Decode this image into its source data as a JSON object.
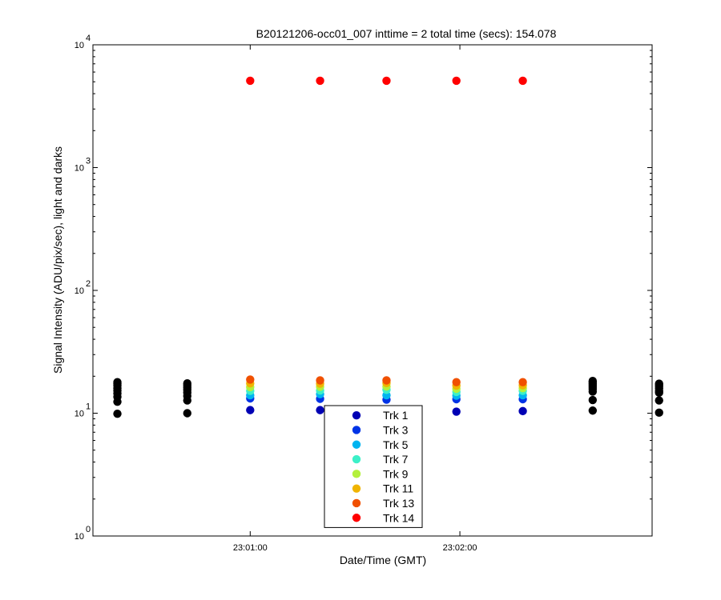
{
  "chart_data": {
    "type": "scatter",
    "title": "B20121206-occ01_007 inttime = 2 total time (secs): 154.078",
    "xlabel": "Date/Time (GMT)",
    "ylabel": "Signal Intensity (ADU/pix/sec), light and darks",
    "yscale": "log",
    "ylim": [
      1,
      10000
    ],
    "xlim": [
      "23:00:15",
      "23:02:55"
    ],
    "x_ticks": [
      "23:01:00",
      "23:02:00"
    ],
    "y_ticks": [
      {
        "value": 1,
        "base": "10",
        "exp": "0"
      },
      {
        "value": 10,
        "base": "10",
        "exp": "1"
      },
      {
        "value": 100,
        "base": "10",
        "exp": "2"
      },
      {
        "value": 1000,
        "base": "10",
        "exp": "3"
      },
      {
        "value": 10000,
        "base": "10",
        "exp": "4"
      }
    ],
    "grid": false,
    "legend_position": "bottom-center",
    "series": [
      {
        "name": "Trk 1",
        "color": "#0000b4",
        "points": [
          [
            "23:01:00",
            10.6
          ],
          [
            "23:01:20",
            10.6
          ],
          [
            "23:01:39",
            10.4
          ],
          [
            "23:01:59",
            10.3
          ],
          [
            "23:02:18",
            10.4
          ]
        ]
      },
      {
        "name": "Trk 3",
        "color": "#0033e6",
        "points": [
          [
            "23:01:00",
            13.2
          ],
          [
            "23:01:20",
            13.1
          ],
          [
            "23:01:39",
            12.9
          ],
          [
            "23:01:59",
            13.0
          ],
          [
            "23:02:18",
            13.0
          ]
        ]
      },
      {
        "name": "Trk 5",
        "color": "#00b4f0",
        "points": [
          [
            "23:01:00",
            14.0
          ],
          [
            "23:01:20",
            14.3
          ],
          [
            "23:01:39",
            14.0
          ],
          [
            "23:01:59",
            13.9
          ],
          [
            "23:02:18",
            14.0
          ]
        ]
      },
      {
        "name": "Trk 7",
        "color": "#3cf0c8",
        "points": [
          [
            "23:01:00",
            15.2
          ],
          [
            "23:01:20",
            15.3
          ],
          [
            "23:01:39",
            15.5
          ],
          [
            "23:01:59",
            14.9
          ],
          [
            "23:02:18",
            15.2
          ]
        ]
      },
      {
        "name": "Trk 9",
        "color": "#b4f03c",
        "points": [
          [
            "23:01:00",
            16.3
          ],
          [
            "23:01:20",
            16.4
          ],
          [
            "23:01:39",
            16.5
          ],
          [
            "23:01:59",
            15.8
          ],
          [
            "23:02:18",
            16.0
          ]
        ]
      },
      {
        "name": "Trk 11",
        "color": "#f0b400",
        "points": [
          [
            "23:01:00",
            17.5
          ],
          [
            "23:01:20",
            17.4
          ],
          [
            "23:01:39",
            17.6
          ],
          [
            "23:01:59",
            16.8
          ],
          [
            "23:02:18",
            16.9
          ]
        ]
      },
      {
        "name": "Trk 13",
        "color": "#f05000",
        "points": [
          [
            "23:01:00",
            18.8
          ],
          [
            "23:01:20",
            18.5
          ],
          [
            "23:01:39",
            18.5
          ],
          [
            "23:01:59",
            17.9
          ],
          [
            "23:02:18",
            17.9
          ]
        ]
      },
      {
        "name": "Trk 14",
        "color": "#ff0000",
        "points": [
          [
            "23:01:00",
            5100
          ],
          [
            "23:01:20",
            5100
          ],
          [
            "23:01:39",
            5100
          ],
          [
            "23:01:59",
            5100
          ],
          [
            "23:02:18",
            5100
          ]
        ]
      }
    ],
    "darks": {
      "color": "#000000",
      "groups": [
        {
          "x": "23:00:22",
          "values": [
            9.9,
            12.4,
            13.6,
            14.5,
            15.3,
            16.0,
            16.8,
            17.4,
            17.9
          ]
        },
        {
          "x": "23:00:42",
          "values": [
            10.0,
            12.7,
            13.8,
            14.7,
            15.5,
            16.2,
            16.9,
            17.5
          ]
        },
        {
          "x": "23:02:38",
          "values": [
            10.5,
            12.8,
            15.0,
            15.7,
            16.3,
            16.9,
            17.4,
            17.9,
            18.3
          ]
        },
        {
          "x": "23:02:57",
          "values": [
            10.1,
            12.7,
            14.7,
            15.2,
            15.9,
            16.5,
            17.0,
            17.4
          ]
        }
      ]
    }
  }
}
